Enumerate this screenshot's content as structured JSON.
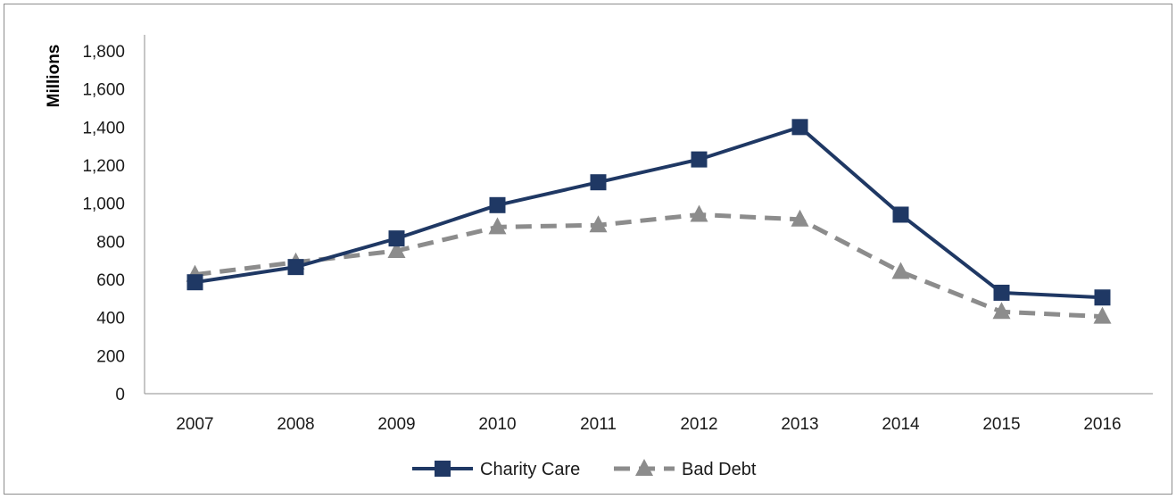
{
  "chart_data": {
    "type": "line",
    "title": "",
    "xlabel": "",
    "ylabel": "Millions",
    "ylim": [
      0,
      1800
    ],
    "y_ticks": [
      "0",
      "200",
      "400",
      "600",
      "800",
      "1,000",
      "1,200",
      "1,400",
      "1,600",
      "1,800"
    ],
    "categories": [
      "2007",
      "2008",
      "2009",
      "2010",
      "2011",
      "2012",
      "2013",
      "2014",
      "2015",
      "2016"
    ],
    "grid": false,
    "legend_position": "bottom",
    "series": [
      {
        "name": "Charity Care",
        "color": "#1f3864",
        "marker": "square",
        "line_style": "solid",
        "values": [
          585,
          665,
          815,
          990,
          1110,
          1230,
          1400,
          940,
          530,
          505
        ]
      },
      {
        "name": "Bad Debt",
        "color": "#8c8c8c",
        "marker": "triangle",
        "line_style": "dashed",
        "values": [
          625,
          690,
          750,
          875,
          885,
          940,
          915,
          640,
          430,
          405
        ]
      }
    ]
  }
}
